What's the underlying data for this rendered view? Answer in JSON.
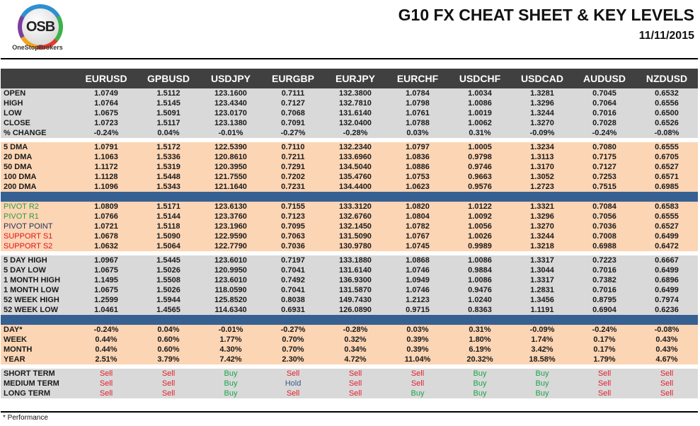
{
  "header": {
    "logo_text": "OSB",
    "brand": "OneStopBrokers",
    "title": "G10 FX CHEAT SHEET & KEY LEVELS",
    "date": "11/11/2015"
  },
  "columns": [
    "EURUSD",
    "GPBUSD",
    "USDJPY",
    "EURGBP",
    "EURJPY",
    "EURCHF",
    "USDCHF",
    "USDCAD",
    "AUDUSD",
    "NZDUSD"
  ],
  "colors": {
    "grey": "#d9d9d9",
    "peach": "#fcd5b4",
    "separator": "#366092",
    "header": "#404040",
    "buy": "#1aa34a",
    "sell": "#e41e2b",
    "hold": "#3a5a8a",
    "pivot_r": "#2e9e3e",
    "pivot_point": "#1f2f5a",
    "support": "#e0101c"
  },
  "sections": [
    {
      "style": "grey",
      "rows": [
        {
          "label": "OPEN",
          "values": [
            "1.0749",
            "1.5112",
            "123.1600",
            "0.7111",
            "132.3800",
            "1.0784",
            "1.0034",
            "1.3281",
            "0.7045",
            "0.6532"
          ]
        },
        {
          "label": "HIGH",
          "values": [
            "1.0764",
            "1.5145",
            "123.4340",
            "0.7127",
            "132.7810",
            "1.0798",
            "1.0086",
            "1.3296",
            "0.7064",
            "0.6556"
          ]
        },
        {
          "label": "LOW",
          "values": [
            "1.0675",
            "1.5091",
            "123.0170",
            "0.7068",
            "131.6140",
            "1.0761",
            "1.0019",
            "1.3244",
            "0.7016",
            "0.6500"
          ]
        },
        {
          "label": "CLOSE",
          "values": [
            "1.0723",
            "1.5117",
            "123.1380",
            "0.7091",
            "132.0400",
            "1.0788",
            "1.0062",
            "1.3270",
            "0.7028",
            "0.6526"
          ]
        },
        {
          "label": "% CHANGE",
          "values": [
            "-0.24%",
            "0.04%",
            "-0.01%",
            "-0.27%",
            "-0.28%",
            "0.03%",
            "0.31%",
            "-0.09%",
            "-0.24%",
            "-0.08%"
          ]
        }
      ]
    },
    {
      "style": "gap"
    },
    {
      "style": "peach",
      "rows": [
        {
          "label": "5 DMA",
          "values": [
            "1.0791",
            "1.5172",
            "122.5390",
            "0.7110",
            "132.2340",
            "1.0797",
            "1.0005",
            "1.3234",
            "0.7080",
            "0.6555"
          ]
        },
        {
          "label": "20 DMA",
          "values": [
            "1.1063",
            "1.5336",
            "120.8610",
            "0.7211",
            "133.6960",
            "1.0836",
            "0.9798",
            "1.3113",
            "0.7175",
            "0.6705"
          ]
        },
        {
          "label": "50 DMA",
          "values": [
            "1.1172",
            "1.5319",
            "120.3950",
            "0.7291",
            "134.5040",
            "1.0886",
            "0.9746",
            "1.3170",
            "0.7127",
            "0.6527"
          ]
        },
        {
          "label": "100 DMA",
          "values": [
            "1.1128",
            "1.5448",
            "121.7550",
            "0.7202",
            "135.4760",
            "1.0753",
            "0.9663",
            "1.3052",
            "0.7253",
            "0.6571"
          ]
        },
        {
          "label": "200 DMA",
          "values": [
            "1.1096",
            "1.5343",
            "121.1640",
            "0.7231",
            "134.4400",
            "1.0623",
            "0.9576",
            "1.2723",
            "0.7515",
            "0.6985"
          ]
        }
      ]
    },
    {
      "style": "blue"
    },
    {
      "style": "peach",
      "rows": [
        {
          "label": "PIVOT R2",
          "label_color": "#2e9e3e",
          "values": [
            "1.0809",
            "1.5171",
            "123.6130",
            "0.7155",
            "133.3120",
            "1.0820",
            "1.0122",
            "1.3321",
            "0.7084",
            "0.6583"
          ]
        },
        {
          "label": "PIVOT R1",
          "label_color": "#2e9e3e",
          "values": [
            "1.0766",
            "1.5144",
            "123.3760",
            "0.7123",
            "132.6760",
            "1.0804",
            "1.0092",
            "1.3296",
            "0.7056",
            "0.6555"
          ]
        },
        {
          "label": "PIVOT POINT",
          "label_color": "#1f2f5a",
          "values": [
            "1.0721",
            "1.5118",
            "123.1960",
            "0.7095",
            "132.1450",
            "1.0782",
            "1.0056",
            "1.3270",
            "0.7036",
            "0.6527"
          ]
        },
        {
          "label": "SUPPORT S1",
          "label_color": "#e0101c",
          "values": [
            "1.0678",
            "1.5090",
            "122.9590",
            "0.7063",
            "131.5090",
            "1.0767",
            "1.0026",
            "1.3244",
            "0.7008",
            "0.6499"
          ]
        },
        {
          "label": "SUPPORT S2",
          "label_color": "#e0101c",
          "values": [
            "1.0632",
            "1.5064",
            "122.7790",
            "0.7036",
            "130.9780",
            "1.0745",
            "0.9989",
            "1.3218",
            "0.6988",
            "0.6472"
          ]
        }
      ]
    },
    {
      "style": "gap"
    },
    {
      "style": "grey",
      "rows": [
        {
          "label": "5 DAY HIGH",
          "values": [
            "1.0967",
            "1.5445",
            "123.6010",
            "0.7197",
            "133.1880",
            "1.0868",
            "1.0086",
            "1.3317",
            "0.7223",
            "0.6667"
          ]
        },
        {
          "label": "5 DAY LOW",
          "values": [
            "1.0675",
            "1.5026",
            "120.9950",
            "0.7041",
            "131.6140",
            "1.0746",
            "0.9884",
            "1.3044",
            "0.7016",
            "0.6499"
          ]
        },
        {
          "label": "1 MONTH HIGH",
          "values": [
            "1.1495",
            "1.5508",
            "123.6010",
            "0.7492",
            "136.9300",
            "1.0949",
            "1.0086",
            "1.3317",
            "0.7382",
            "0.6896"
          ]
        },
        {
          "label": "1 MONTH LOW",
          "values": [
            "1.0675",
            "1.5026",
            "118.0590",
            "0.7041",
            "131.5870",
            "1.0746",
            "0.9476",
            "1.2831",
            "0.7016",
            "0.6499"
          ]
        },
        {
          "label": "52 WEEK HIGH",
          "values": [
            "1.2599",
            "1.5944",
            "125.8520",
            "0.8038",
            "149.7430",
            "1.2123",
            "1.0240",
            "1.3456",
            "0.8795",
            "0.7974"
          ]
        },
        {
          "label": "52 WEEK LOW",
          "values": [
            "1.0461",
            "1.4565",
            "114.6340",
            "0.6931",
            "126.0890",
            "0.9715",
            "0.8363",
            "1.1191",
            "0.6904",
            "0.6236"
          ]
        }
      ]
    },
    {
      "style": "blue"
    },
    {
      "style": "peach",
      "rows": [
        {
          "label": "DAY*",
          "values": [
            "-0.24%",
            "0.04%",
            "-0.01%",
            "-0.27%",
            "-0.28%",
            "0.03%",
            "0.31%",
            "-0.09%",
            "-0.24%",
            "-0.08%"
          ]
        },
        {
          "label": "WEEK",
          "values": [
            "0.44%",
            "0.60%",
            "1.77%",
            "0.70%",
            "0.32%",
            "0.39%",
            "1.80%",
            "1.74%",
            "0.17%",
            "0.43%"
          ]
        },
        {
          "label": "MONTH",
          "values": [
            "0.44%",
            "0.60%",
            "4.30%",
            "0.70%",
            "0.34%",
            "0.39%",
            "6.19%",
            "3.42%",
            "0.17%",
            "0.43%"
          ]
        },
        {
          "label": "YEAR",
          "values": [
            "2.51%",
            "3.79%",
            "7.42%",
            "2.30%",
            "4.72%",
            "11.04%",
            "20.32%",
            "18.58%",
            "1.79%",
            "4.67%"
          ]
        }
      ]
    },
    {
      "style": "gap"
    },
    {
      "style": "grey",
      "signals": true,
      "rows": [
        {
          "label": "SHORT TERM",
          "values": [
            "Sell",
            "Sell",
            "Buy",
            "Sell",
            "Sell",
            "Sell",
            "Buy",
            "Buy",
            "Sell",
            "Sell"
          ]
        },
        {
          "label": "MEDIUM TERM",
          "values": [
            "Sell",
            "Sell",
            "Buy",
            "Hold",
            "Sell",
            "Sell",
            "Buy",
            "Buy",
            "Sell",
            "Sell"
          ]
        },
        {
          "label": "LONG TERM",
          "values": [
            "Sell",
            "Sell",
            "Buy",
            "Sell",
            "Sell",
            "Buy",
            "Buy",
            "Buy",
            "Sell",
            "Sell"
          ]
        }
      ]
    }
  ],
  "footnote": "* Performance"
}
